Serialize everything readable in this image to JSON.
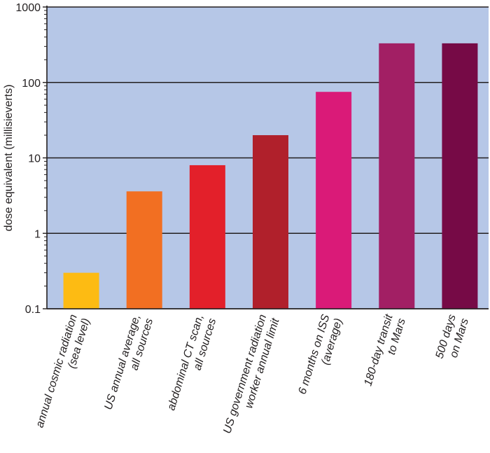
{
  "chart_data": {
    "type": "bar",
    "title": "",
    "xlabel": "",
    "ylabel": "dose equivalent (millisieverts)",
    "yscale": "log",
    "ylim": [
      0.1,
      1000
    ],
    "yticks": [
      0.1,
      1,
      10,
      100,
      1000
    ],
    "ytick_labels": [
      "0.1",
      "1",
      "10",
      "100",
      "1000"
    ],
    "grid": true,
    "plot_background": "#b6c7e7",
    "categories": [
      [
        "annual cosmic radiation",
        "(sea level)"
      ],
      [
        "US annual average,",
        "all sources"
      ],
      [
        "abdominal CT scan,",
        "all sources"
      ],
      [
        "US government radiation",
        "worker annual limit"
      ],
      [
        "6 months on ISS",
        "(average)"
      ],
      [
        "180-day transit",
        "to Mars"
      ],
      [
        "500 days",
        "on Mars"
      ]
    ],
    "values": [
      0.3,
      3.6,
      8,
      20,
      75,
      330,
      330
    ],
    "colors": [
      "#fdbb13",
      "#f26f22",
      "#e3202a",
      "#b0202b",
      "#da1a78",
      "#a21f64",
      "#760a46"
    ]
  }
}
